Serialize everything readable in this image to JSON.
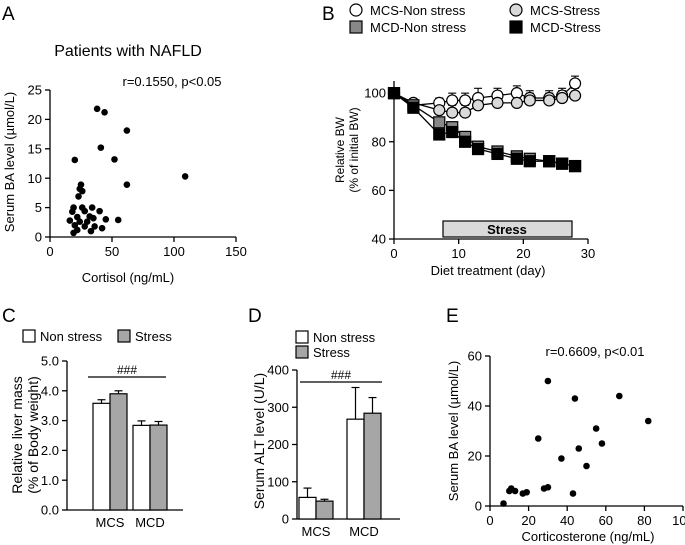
{
  "chart_data": [
    {
      "id": "A",
      "panel_label": "A",
      "type": "scatter",
      "title": "Patients with NAFLD",
      "annotation": "r=0.1550, p<0.05",
      "xlabel": "Cortisol (ng/mL)",
      "ylabel": "Serum BA level (µmol/L)",
      "xlim": [
        0,
        150
      ],
      "ylim": [
        0,
        25
      ],
      "xticks": [
        0,
        50,
        100,
        150
      ],
      "yticks": [
        0,
        5,
        10,
        15,
        20,
        25
      ],
      "points": [
        [
          38,
          21.8
        ],
        [
          44,
          21.2
        ],
        [
          41,
          15.2
        ],
        [
          62,
          18.1
        ],
        [
          52,
          13.2
        ],
        [
          20,
          13.1
        ],
        [
          62,
          8.9
        ],
        [
          109,
          10.3
        ],
        [
          25,
          8.9
        ],
        [
          24,
          8.2
        ],
        [
          26,
          7.8
        ],
        [
          23,
          6.9
        ],
        [
          19,
          5.0
        ],
        [
          26,
          5.0
        ],
        [
          34,
          5.0
        ],
        [
          18,
          4.3
        ],
        [
          28,
          4.4
        ],
        [
          40,
          4.4
        ],
        [
          22,
          3.4
        ],
        [
          32,
          3.5
        ],
        [
          35,
          3.2
        ],
        [
          45,
          3.0
        ],
        [
          55,
          2.9
        ],
        [
          16,
          2.8
        ],
        [
          24,
          2.6
        ],
        [
          30,
          2.6
        ],
        [
          20,
          2.0
        ],
        [
          28,
          1.8
        ],
        [
          36,
          1.8
        ],
        [
          42,
          1.5
        ],
        [
          22,
          1.2
        ],
        [
          33,
          1.0
        ],
        [
          19,
          0.7
        ]
      ]
    },
    {
      "id": "B",
      "panel_label": "B",
      "type": "line",
      "xlabel": "Diet treatment (day)",
      "ylabel": [
        "Relative BW",
        "(% of initial BW)"
      ],
      "xlim": [
        0,
        30
      ],
      "ylim": [
        40,
        105
      ],
      "xticks": [
        0,
        10,
        20,
        30
      ],
      "yticks": [
        40,
        60,
        80,
        100
      ],
      "stress_bar": {
        "label": "Stress",
        "start": 8,
        "end": 28
      },
      "x": [
        0,
        3,
        7,
        9,
        11,
        13,
        16,
        19,
        21,
        24,
        26,
        28
      ],
      "series": [
        {
          "name": "MCS-Non stress",
          "marker": "circle",
          "fill": "#ffffff",
          "values": [
            100,
            95,
            96,
            97,
            97,
            98,
            99,
            100,
            98,
            98,
            99,
            104
          ],
          "errors": [
            1,
            1,
            2,
            3,
            3,
            4,
            3,
            3,
            3,
            3,
            3,
            3
          ]
        },
        {
          "name": "MCS-Stress",
          "marker": "circle",
          "fill": "#d9d9d9",
          "values": [
            100,
            96,
            93,
            92,
            92,
            95,
            96,
            96,
            97,
            97,
            98,
            99
          ],
          "errors": [
            1,
            1,
            2,
            3,
            3,
            3,
            3,
            3,
            3,
            3,
            3,
            3
          ]
        },
        {
          "name": "MCD-Non stress",
          "marker": "square",
          "fill": "#888888",
          "values": [
            100,
            95,
            88,
            86,
            82,
            78,
            76,
            74,
            73,
            72,
            71,
            70
          ],
          "errors": [
            1,
            1,
            2,
            2,
            2,
            2,
            2,
            2,
            2,
            2,
            2,
            2
          ]
        },
        {
          "name": "MCD-Stress",
          "marker": "square",
          "fill": "#000000",
          "values": [
            100,
            94,
            83,
            84,
            80,
            77,
            75,
            73,
            72,
            72,
            71,
            70
          ],
          "errors": [
            1,
            1,
            2,
            2,
            2,
            2,
            2,
            2,
            2,
            2,
            2,
            2
          ]
        }
      ]
    },
    {
      "id": "C",
      "panel_label": "C",
      "type": "bar",
      "ylabel": [
        "Relative liver mass",
        "(% of Body weight)"
      ],
      "ylim": [
        0,
        5
      ],
      "yticks": [
        "0.0",
        "1.0",
        "2.0",
        "3.0",
        "4.0",
        "5.0"
      ],
      "categories": [
        "MCS",
        "MCD"
      ],
      "series": [
        {
          "name": "Non stress",
          "fill": "#ffffff",
          "values": [
            3.58,
            2.84
          ],
          "errors": [
            0.12,
            0.15
          ]
        },
        {
          "name": "Stress",
          "fill": "#a6a6a6",
          "values": [
            3.9,
            2.85
          ],
          "errors": [
            0.1,
            0.12
          ]
        }
      ],
      "significance": "###"
    },
    {
      "id": "D",
      "panel_label": "D",
      "type": "bar",
      "ylabel": "Serum ALT level (U/L)",
      "ylim": [
        0,
        400
      ],
      "yticks": [
        0,
        100,
        200,
        300,
        400
      ],
      "categories": [
        "MCS",
        "MCD"
      ],
      "series": [
        {
          "name": "Non stress",
          "fill": "#ffffff",
          "values": [
            58,
            268
          ],
          "errors": [
            25,
            85
          ]
        },
        {
          "name": "Stress",
          "fill": "#a6a6a6",
          "values": [
            48,
            284
          ],
          "errors": [
            5,
            42
          ]
        }
      ],
      "significance": "###"
    },
    {
      "id": "E",
      "panel_label": "E",
      "type": "scatter",
      "annotation": "r=0.6609, p<0.01",
      "xlabel": "Corticosterone (ng/mL)",
      "ylabel": "Serum BA level (µmol/L)",
      "xlim": [
        0,
        100
      ],
      "ylim": [
        0,
        60
      ],
      "xticks": [
        0,
        20,
        40,
        60,
        80,
        100
      ],
      "yticks": [
        0,
        20,
        40,
        60
      ],
      "points": [
        [
          7,
          1
        ],
        [
          10,
          6
        ],
        [
          11,
          7
        ],
        [
          13,
          6
        ],
        [
          17,
          5
        ],
        [
          19,
          5.5
        ],
        [
          25,
          27
        ],
        [
          28,
          7
        ],
        [
          30,
          7.5
        ],
        [
          30,
          50
        ],
        [
          37,
          19
        ],
        [
          43,
          5
        ],
        [
          44,
          43
        ],
        [
          46,
          23
        ],
        [
          50,
          16
        ],
        [
          55,
          31
        ],
        [
          58,
          25
        ],
        [
          67,
          44
        ],
        [
          82,
          34
        ]
      ]
    }
  ]
}
